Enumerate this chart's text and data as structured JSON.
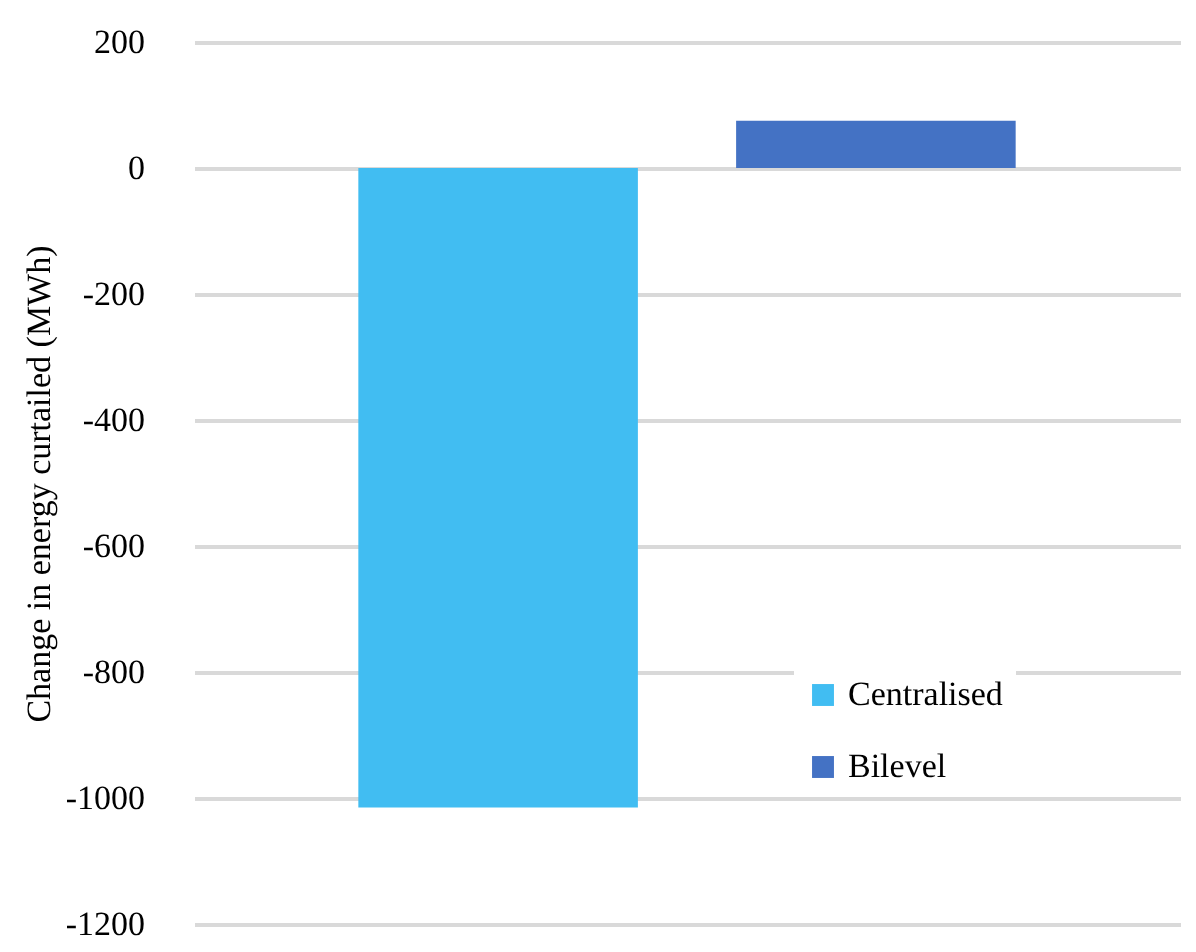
{
  "chart_data": {
    "type": "bar",
    "ylabel": "Change in energy curtailed (MWh)",
    "categories": [
      null
    ],
    "series": [
      {
        "name": "Centralised",
        "color": "#41bdf2",
        "values": [
          -1015
        ]
      },
      {
        "name": "Bilevel",
        "color": "#4472c4",
        "values": [
          75
        ]
      }
    ],
    "ylim": [
      -1200,
      200
    ],
    "yticks": [
      -1200,
      -1000,
      -800,
      -600,
      -400,
      -200,
      0,
      200
    ],
    "grid": "y",
    "legend": "bottom right",
    "tick_labels": "y"
  }
}
